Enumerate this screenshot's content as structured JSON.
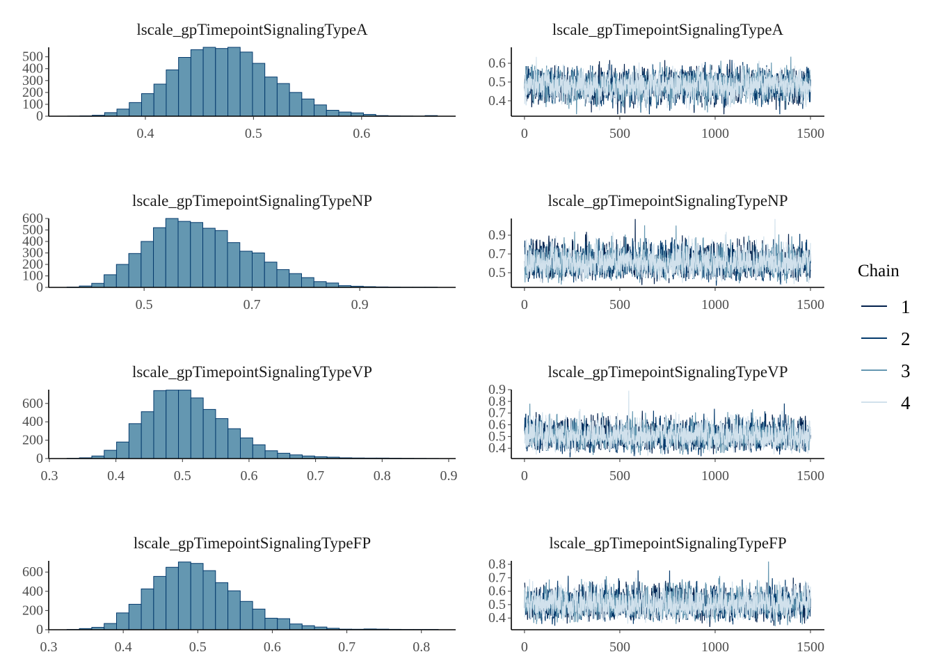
{
  "chart_data": [
    {
      "type": "bar",
      "kind": "histogram",
      "title": "lscale_gpTimepointSignalingTypeA",
      "bin_start": 0.3281,
      "bin_width": 0.0114,
      "counts": [
        1,
        3,
        8,
        30,
        60,
        115,
        190,
        270,
        390,
        495,
        560,
        580,
        570,
        580,
        540,
        445,
        330,
        275,
        200,
        145,
        95,
        50,
        35,
        28,
        15,
        5,
        3,
        2,
        1,
        5
      ],
      "xlim": [
        0.3106,
        0.687
      ],
      "ylim": [
        0,
        580
      ],
      "xticks": [
        0.4,
        0.5,
        0.6
      ],
      "xtick_labels": [
        "0.4",
        "0.5",
        "0.6"
      ],
      "yticks": [
        0,
        100,
        200,
        300,
        400,
        500
      ],
      "ytick_labels": [
        "0",
        "100",
        "200",
        "300",
        "400",
        "500"
      ]
    },
    {
      "type": "line",
      "kind": "trace",
      "title": "lscale_gpTimepointSignalingTypeA",
      "iterations": 1500,
      "mean": 0.48,
      "sd": 0.045,
      "xlim": [
        -69,
        1573
      ],
      "ylim": [
        0.318,
        0.685
      ],
      "xticks": [
        0,
        500,
        1000,
        1500
      ],
      "xtick_labels": [
        "0",
        "500",
        "1000",
        "1500"
      ],
      "yticks": [
        0.4,
        0.5,
        0.6
      ],
      "ytick_labels": [
        "0.4",
        "0.5",
        "0.6"
      ]
    },
    {
      "type": "bar",
      "kind": "histogram",
      "title": "lscale_gpTimepointSignalingTypeNP",
      "bin_start": 0.357,
      "bin_width": 0.0229,
      "counts": [
        3,
        12,
        35,
        110,
        200,
        295,
        400,
        520,
        600,
        575,
        565,
        515,
        495,
        390,
        315,
        300,
        220,
        155,
        120,
        85,
        50,
        38,
        15,
        10,
        6,
        4,
        3,
        2,
        2,
        2
      ],
      "xlim": [
        0.323,
        1.078
      ],
      "ylim": [
        0,
        600
      ],
      "xticks": [
        0.5,
        0.7,
        0.9
      ],
      "xtick_labels": [
        "0.5",
        "0.7",
        "0.9"
      ],
      "yticks": [
        0,
        100,
        200,
        300,
        400,
        500,
        600
      ],
      "ytick_labels": [
        "0",
        "100",
        "200",
        "300",
        "400",
        "500",
        "600"
      ]
    },
    {
      "type": "line",
      "kind": "trace",
      "title": "lscale_gpTimepointSignalingTypeNP",
      "iterations": 1500,
      "mean": 0.6,
      "sd": 0.09,
      "xlim": [
        -69,
        1573
      ],
      "ylim": [
        0.344,
        1.078
      ],
      "xticks": [
        0,
        500,
        1000,
        1500
      ],
      "xtick_labels": [
        "0",
        "500",
        "1000",
        "1500"
      ],
      "yticks": [
        0.5,
        0.7,
        0.9
      ],
      "ytick_labels": [
        "0.5",
        "0.7",
        "0.9"
      ]
    },
    {
      "type": "bar",
      "kind": "histogram",
      "title": "lscale_gpTimepointSignalingTypeVP",
      "bin_start": 0.3266,
      "bin_width": 0.0186,
      "counts": [
        3,
        8,
        28,
        90,
        180,
        380,
        510,
        740,
        745,
        745,
        660,
        535,
        435,
        325,
        225,
        150,
        85,
        58,
        40,
        28,
        20,
        15,
        8,
        6,
        5,
        5,
        4,
        3,
        2,
        1
      ],
      "xlim": [
        0.299,
        0.9105
      ],
      "ylim": [
        0,
        750
      ],
      "xticks": [
        0.3,
        0.4,
        0.5,
        0.6,
        0.7,
        0.8,
        0.9
      ],
      "xtick_labels": [
        "0.3",
        "0.4",
        "0.5",
        "0.6",
        "0.7",
        "0.8",
        "0.9"
      ],
      "yticks": [
        0,
        200,
        400,
        600
      ],
      "ytick_labels": [
        "0",
        "200",
        "400",
        "600"
      ]
    },
    {
      "type": "line",
      "kind": "trace",
      "title": "lscale_gpTimepointSignalingTypeVP",
      "iterations": 1500,
      "mean": 0.5,
      "sd": 0.065,
      "xlim": [
        -69,
        1573
      ],
      "ylim": [
        0.312,
        0.9
      ],
      "xticks": [
        0,
        500,
        1000,
        1500
      ],
      "xtick_labels": [
        "0",
        "500",
        "1000",
        "1500"
      ],
      "yticks": [
        0.4,
        0.5,
        0.6,
        0.7,
        0.8,
        0.9
      ],
      "ytick_labels": [
        "0.4",
        "0.5",
        "0.6",
        "0.7",
        "0.8",
        "0.9"
      ]
    },
    {
      "type": "bar",
      "kind": "histogram",
      "title": "lscale_gpTimepointSignalingTypeFP",
      "bin_start": 0.3246,
      "bin_width": 0.0166,
      "counts": [
        3,
        12,
        25,
        65,
        175,
        265,
        425,
        555,
        650,
        705,
        690,
        615,
        490,
        405,
        295,
        215,
        120,
        115,
        60,
        42,
        28,
        15,
        6,
        5,
        8,
        6,
        4,
        3,
        3,
        3
      ],
      "xlim": [
        0.3,
        0.846
      ],
      "ylim": [
        0,
        717
      ],
      "xticks": [
        0.3,
        0.4,
        0.5,
        0.6,
        0.7,
        0.8
      ],
      "xtick_labels": [
        "0.3",
        "0.4",
        "0.5",
        "0.6",
        "0.7",
        "0.8"
      ],
      "yticks": [
        0,
        200,
        400,
        600
      ],
      "ytick_labels": [
        "0",
        "200",
        "400",
        "600"
      ]
    },
    {
      "type": "line",
      "kind": "trace",
      "title": "lscale_gpTimepointSignalingTypeFP",
      "iterations": 1500,
      "mean": 0.5,
      "sd": 0.06,
      "xlim": [
        -69,
        1573
      ],
      "ylim": [
        0.313,
        0.826
      ],
      "xticks": [
        0,
        500,
        1000,
        1500
      ],
      "xtick_labels": [
        "0",
        "500",
        "1000",
        "1500"
      ],
      "yticks": [
        0.4,
        0.5,
        0.6,
        0.7,
        0.8
      ],
      "ytick_labels": [
        "0.4",
        "0.5",
        "0.6",
        "0.7",
        "0.8"
      ]
    }
  ],
  "legend": {
    "title": "Chain",
    "entries": [
      {
        "label": "1",
        "color": "#011f4b"
      },
      {
        "label": "2",
        "color": "#03396c"
      },
      {
        "label": "3",
        "color": "#6497b1"
      },
      {
        "label": "4",
        "color": "#d1e1ec"
      }
    ]
  },
  "colors": {
    "hist_fill": "#6497b1",
    "hist_stroke": "#03396c",
    "axis": "#000000"
  }
}
